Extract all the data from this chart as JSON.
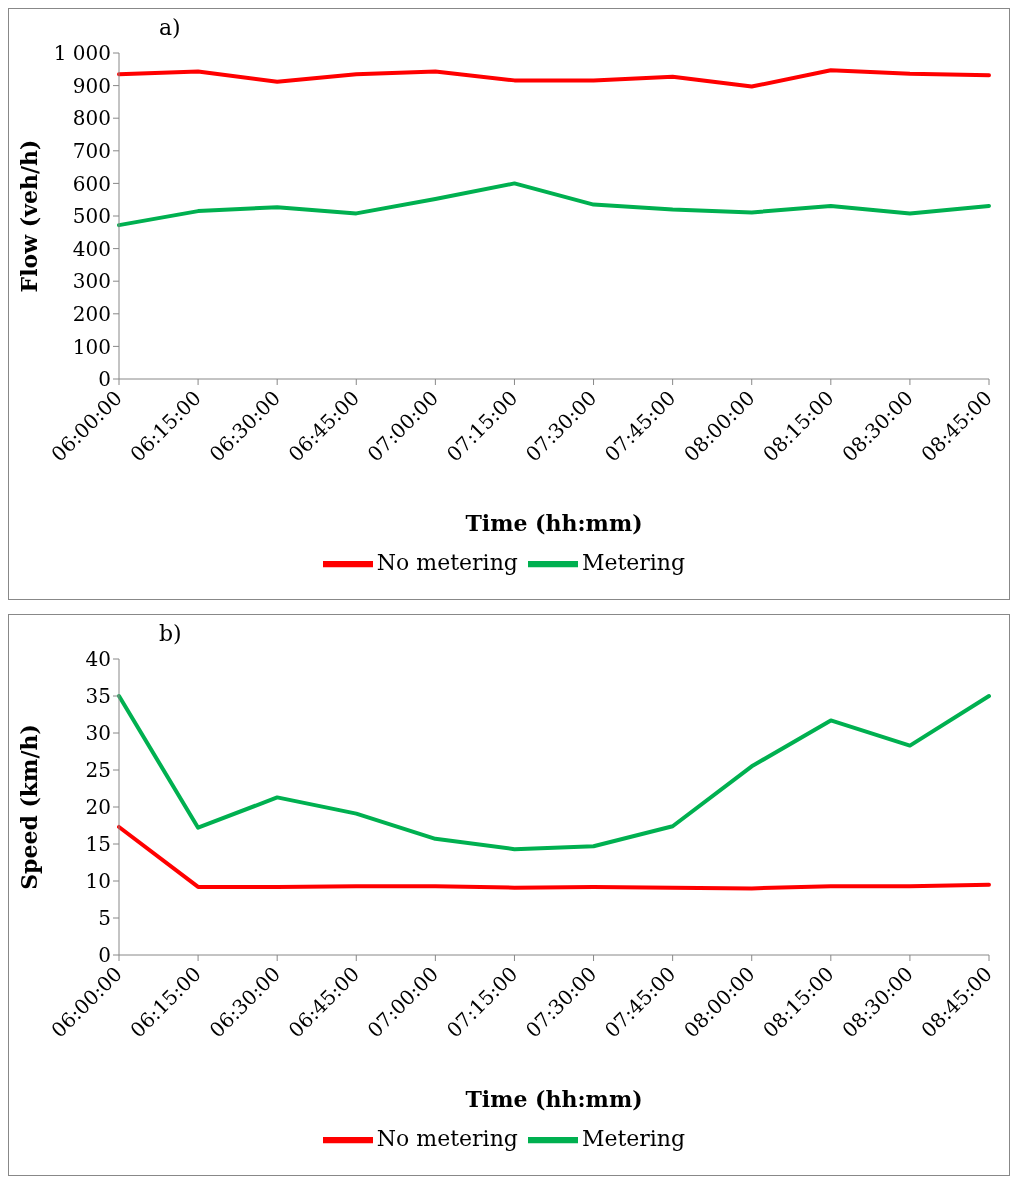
{
  "chart_data": [
    {
      "type": "line",
      "annotations": [
        "a)"
      ],
      "xlabel": "Time (hh:mm)",
      "ylabel": "Flow (veh/h)",
      "categories": [
        "06:00:00",
        "06:15:00",
        "06:30:00",
        "06:45:00",
        "07:00:00",
        "07:15:00",
        "07:30:00",
        "07:45:00",
        "08:00:00",
        "08:15:00",
        "08:30:00",
        "08:45:00"
      ],
      "series": [
        {
          "name": "No metering",
          "color": "#ff0000",
          "values": [
            935,
            943,
            912,
            935,
            943,
            916,
            916,
            927,
            897,
            947,
            936,
            932
          ]
        },
        {
          "name": "Metering",
          "color": "#00b050",
          "values": [
            472,
            515,
            527,
            508,
            552,
            600,
            535,
            520,
            511,
            531,
            508,
            531
          ]
        }
      ],
      "ylim": [
        0,
        1000
      ],
      "yticks": [
        0,
        100,
        200,
        300,
        400,
        500,
        600,
        700,
        800,
        900,
        {
          "value": 1000,
          "label": "1 000"
        }
      ],
      "grid": false,
      "legend": "bottom",
      "marker": "none",
      "line_style": "solid"
    },
    {
      "type": "line",
      "annotations": [
        "b)"
      ],
      "xlabel": "Time (hh:mm)",
      "ylabel": "Speed (km/h)",
      "categories": [
        "06:00:00",
        "06:15:00",
        "06:30:00",
        "06:45:00",
        "07:00:00",
        "07:15:00",
        "07:30:00",
        "07:45:00",
        "08:00:00",
        "08:15:00",
        "08:30:00",
        "08:45:00"
      ],
      "series": [
        {
          "name": "No metering",
          "color": "#ff0000",
          "values": [
            17.3,
            9.2,
            9.2,
            9.3,
            9.3,
            9.1,
            9.2,
            9.1,
            9.0,
            9.3,
            9.3,
            9.5
          ]
        },
        {
          "name": "Metering",
          "color": "#00b050",
          "values": [
            35,
            17.2,
            21.3,
            19.1,
            15.7,
            14.3,
            14.7,
            17.4,
            25.5,
            31.7,
            28.3,
            35.0
          ]
        }
      ],
      "ylim": [
        0,
        40
      ],
      "yticks": [
        0,
        5,
        10,
        15,
        20,
        25,
        30,
        35,
        40
      ],
      "grid": false,
      "legend": "bottom",
      "marker": "none",
      "line_style": "solid"
    }
  ]
}
